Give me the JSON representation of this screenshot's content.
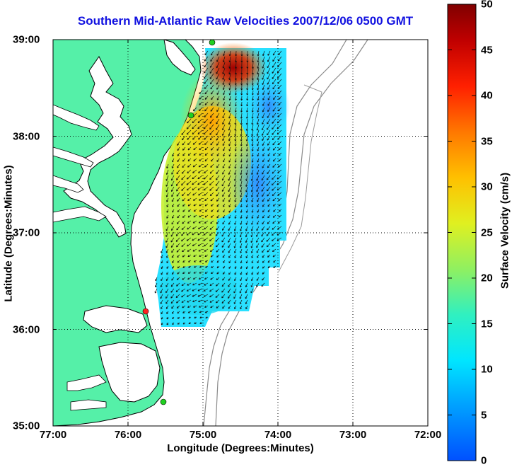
{
  "chart": {
    "title": "Southern Mid-Atlantic Raw Velocities 2007/12/06 0500 GMT",
    "xlabel": "Longitude (Degrees:Minutes)",
    "ylabel": "Latitude (Degrees:Minutes)",
    "colorbar_label": "Surface Velocity (cm/s)",
    "x_ticks": [
      {
        "label": "77:00",
        "value": -77
      },
      {
        "label": "76:00",
        "value": -76
      },
      {
        "label": "75:00",
        "value": -75
      },
      {
        "label": "74:00",
        "value": -74
      },
      {
        "label": "73:00",
        "value": -73
      },
      {
        "label": "72:00",
        "value": -72
      }
    ],
    "y_ticks": [
      {
        "label": "39:00",
        "value": 39
      },
      {
        "label": "38:00",
        "value": 38
      },
      {
        "label": "37:00",
        "value": 37
      },
      {
        "label": "36:00",
        "value": 36
      },
      {
        "label": "35:00",
        "value": 35
      }
    ],
    "colorbar_ticks": [
      "50",
      "45",
      "40",
      "35",
      "30",
      "25",
      "20",
      "15",
      "10",
      "5",
      "0"
    ]
  },
  "chart_data": {
    "type": "heatmap",
    "title": "Southern Mid-Atlantic Raw Velocities 2007/12/06 0500 GMT",
    "xlabel": "Longitude (Degrees:Minutes)",
    "ylabel": "Latitude (Degrees:Minutes)",
    "xlim": [
      -77,
      -72
    ],
    "ylim": [
      35,
      39
    ],
    "colorbar": {
      "label": "Surface Velocity (cm/s)",
      "range": [
        0,
        50
      ]
    },
    "grid": true,
    "colors": {
      "land": "#55f0a8",
      "coast": "#000000",
      "bathymetry": "#8a8a8a",
      "grid": "#000000"
    }
  }
}
